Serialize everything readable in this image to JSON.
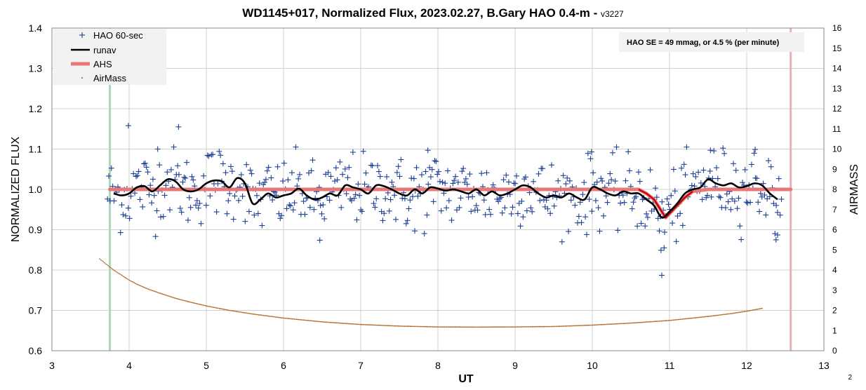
{
  "chart_data": {
    "type": "scatter",
    "title": "WD1145+017, Normalized Flux, 2023.02.27, B.Gary HAO 0.4-m - ",
    "title_version": "v3227",
    "xlabel": "UT",
    "ylabel": "NORMALIZED FLUX",
    "y2label": "AIRMASS",
    "xlim": [
      3,
      13
    ],
    "ylim": [
      0.6,
      1.4
    ],
    "y2lim": [
      0,
      16
    ],
    "x_ticks": [
      3,
      4,
      5,
      6,
      7,
      8,
      9,
      10,
      11,
      12,
      13
    ],
    "y_ticks": [
      0.6,
      0.7,
      0.8,
      0.9,
      1.0,
      1.1,
      1.2,
      1.3,
      1.4
    ],
    "y_tick_labels": [
      "0.6",
      "0.7",
      "0.8",
      "0.9",
      "1.0",
      "1.1",
      "1.2",
      "1.3",
      "1.4"
    ],
    "y2_ticks": [
      0,
      1,
      2,
      3,
      4,
      5,
      6,
      7,
      8,
      9,
      10,
      11,
      12,
      13,
      14,
      15,
      16
    ],
    "grid": true,
    "legend_position": "top-left",
    "annotation": "HAO SE =  49 mmag, or 4.5 % (per minute)",
    "page_number": "2",
    "vertical_lines": [
      {
        "x": 3.75,
        "color": "#a9d9b8"
      },
      {
        "x": 12.57,
        "color": "#e3b3b8"
      }
    ],
    "colors": {
      "points": "#1f3f93",
      "runav": "#000000",
      "ahs": "#e87777",
      "ahs_dip": "#c00000",
      "airmass": "#b06a2a",
      "grid": "#d0d0d0"
    },
    "series": [
      {
        "name": "HAO 60-sec",
        "style": "plus",
        "x_start": 3.72,
        "x_end": 12.45,
        "count": 520,
        "mean": 0.995,
        "scatter_sd": 0.045,
        "outliers": [
          {
            "x": 3.99,
            "y": 1.158
          },
          {
            "x": 4.64,
            "y": 1.155
          },
          {
            "x": 4.37,
            "y": 1.1
          },
          {
            "x": 7.87,
            "y": 1.097
          },
          {
            "x": 9.99,
            "y": 1.093
          },
          {
            "x": 11.53,
            "y": 1.097
          },
          {
            "x": 12.11,
            "y": 1.099
          },
          {
            "x": 10.89,
            "y": 0.849
          },
          {
            "x": 10.93,
            "y": 0.855
          },
          {
            "x": 10.9,
            "y": 0.787
          },
          {
            "x": 12.38,
            "y": 0.875
          },
          {
            "x": 12.4,
            "y": 0.887
          },
          {
            "x": 6.47,
            "y": 0.874
          },
          {
            "x": 7.7,
            "y": 0.897
          }
        ]
      },
      {
        "name": "runav",
        "style": "line",
        "x": [
          3.8,
          3.9,
          4.0,
          4.1,
          4.2,
          4.3,
          4.4,
          4.5,
          4.6,
          4.7,
          4.8,
          4.9,
          5.0,
          5.1,
          5.2,
          5.3,
          5.4,
          5.5,
          5.6,
          5.7,
          5.8,
          5.9,
          6.0,
          6.1,
          6.2,
          6.3,
          6.4,
          6.5,
          6.6,
          6.7,
          6.8,
          6.9,
          7.0,
          7.1,
          7.2,
          7.3,
          7.4,
          7.5,
          7.6,
          7.7,
          7.8,
          7.9,
          8.0,
          8.1,
          8.2,
          8.3,
          8.4,
          8.5,
          8.6,
          8.7,
          8.8,
          8.9,
          9.0,
          9.1,
          9.2,
          9.3,
          9.4,
          9.5,
          9.6,
          9.7,
          9.8,
          9.9,
          10.0,
          10.1,
          10.2,
          10.3,
          10.4,
          10.5,
          10.6,
          10.7,
          10.8,
          10.9,
          11.0,
          11.1,
          11.2,
          11.3,
          11.4,
          11.5,
          11.6,
          11.7,
          11.8,
          11.9,
          12.0,
          12.1,
          12.2,
          12.3,
          12.4
        ],
        "y": [
          0.99,
          0.985,
          0.99,
          1.005,
          1.008,
          0.995,
          1.01,
          1.025,
          1.02,
          1.0,
          0.995,
          1.0,
          1.015,
          1.022,
          1.02,
          1.005,
          1.028,
          1.015,
          0.965,
          0.975,
          0.99,
          0.98,
          0.985,
          0.99,
          1.002,
          0.985,
          0.975,
          0.98,
          0.99,
          0.985,
          1.01,
          1.005,
          1.0,
          0.99,
          1.01,
          1.008,
          1.0,
          0.99,
          0.985,
          1.0,
          0.99,
          1.005,
          1.002,
          0.997,
          1.0,
          0.995,
          0.99,
          1.0,
          0.985,
          0.995,
          0.985,
          0.99,
          1.0,
          1.01,
          1.005,
          0.99,
          0.98,
          0.985,
          0.98,
          0.99,
          0.98,
          0.975,
          1.005,
          1.0,
          0.99,
          0.985,
          0.995,
          0.99,
          0.99,
          0.975,
          0.96,
          0.93,
          0.945,
          0.965,
          0.99,
          1.0,
          1.005,
          1.025,
          1.015,
          1.01,
          1.015,
          1.005,
          1.008,
          1.015,
          1.01,
          0.99,
          0.975
        ]
      },
      {
        "name": "AHS",
        "style": "thick-line",
        "x": [
          3.75,
          10.4,
          10.6,
          10.7,
          10.8,
          10.9,
          10.95,
          11.0,
          11.1,
          11.2,
          11.3,
          11.5,
          12.57
        ],
        "y": [
          1.0,
          1.0,
          1.0,
          0.99,
          0.975,
          0.945,
          0.93,
          0.94,
          0.96,
          0.98,
          0.995,
          1.0,
          1.0
        ],
        "dip_x_range": [
          10.5,
          11.3
        ]
      },
      {
        "name": "AirMass",
        "style": "small-dots",
        "axis": "right",
        "x": [
          3.62,
          3.7,
          3.8,
          3.9,
          4.0,
          4.1,
          4.25,
          4.4,
          4.6,
          4.8,
          5.0,
          5.3,
          5.6,
          6.0,
          6.5,
          7.0,
          7.5,
          8.0,
          8.5,
          9.0,
          9.5,
          10.0,
          10.5,
          11.0,
          11.5,
          11.8,
          12.0,
          12.2
        ],
        "y": [
          4.55,
          4.3,
          4.0,
          3.75,
          3.5,
          3.3,
          3.05,
          2.85,
          2.6,
          2.4,
          2.22,
          2.0,
          1.82,
          1.62,
          1.43,
          1.3,
          1.22,
          1.18,
          1.17,
          1.18,
          1.2,
          1.27,
          1.37,
          1.5,
          1.7,
          1.84,
          1.96,
          2.1
        ]
      }
    ]
  }
}
